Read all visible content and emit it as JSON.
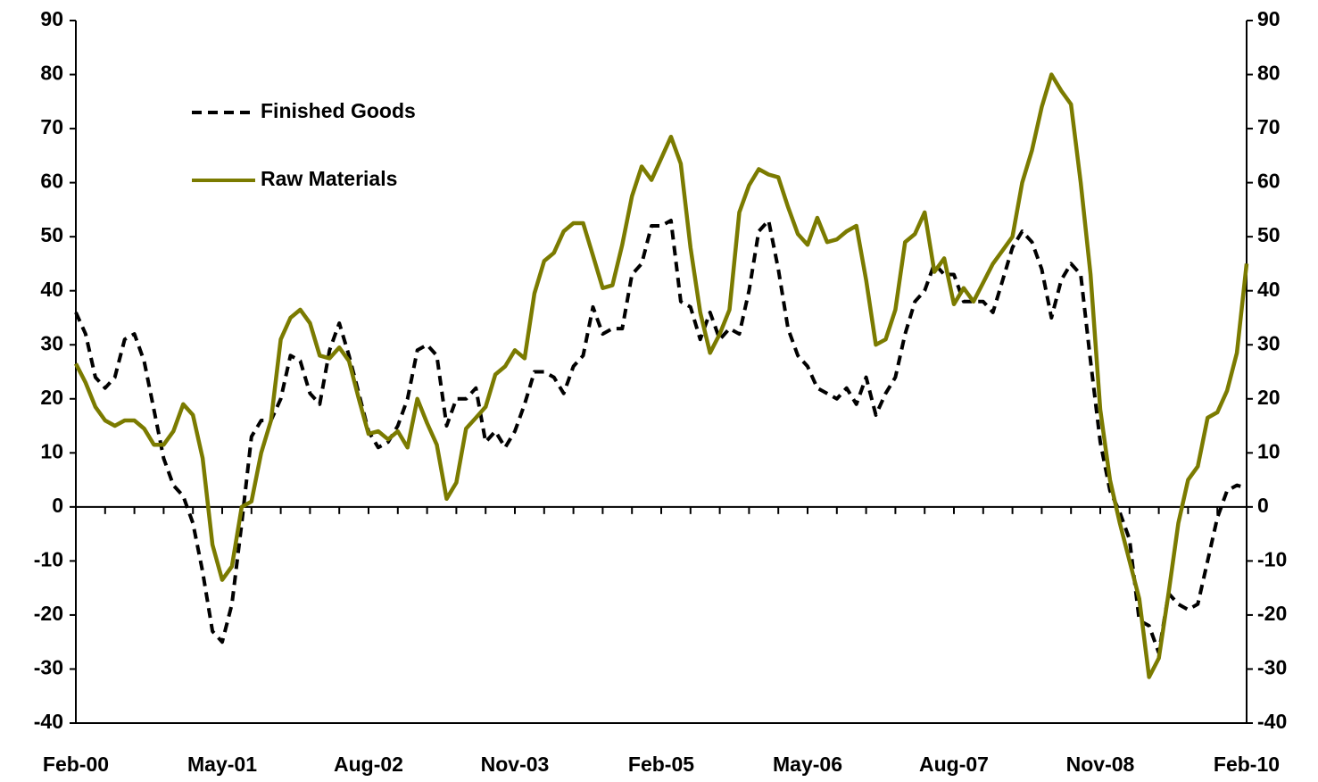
{
  "chart_data": {
    "type": "line",
    "categories": [
      "Feb-00",
      null,
      null,
      null,
      null,
      null,
      null,
      null,
      null,
      null,
      null,
      null,
      null,
      null,
      null,
      "May-01",
      null,
      null,
      null,
      null,
      null,
      null,
      null,
      null,
      null,
      null,
      null,
      null,
      null,
      null,
      "Aug-02",
      null,
      null,
      null,
      null,
      null,
      null,
      null,
      null,
      null,
      null,
      null,
      null,
      null,
      null,
      "Nov-03",
      null,
      null,
      null,
      null,
      null,
      null,
      null,
      null,
      null,
      null,
      null,
      null,
      null,
      null,
      "Feb-05",
      null,
      null,
      null,
      null,
      null,
      null,
      null,
      null,
      null,
      null,
      null,
      null,
      null,
      null,
      "May-06",
      null,
      null,
      null,
      null,
      null,
      null,
      null,
      null,
      null,
      null,
      null,
      null,
      null,
      null,
      "Aug-07",
      null,
      null,
      null,
      null,
      null,
      null,
      null,
      null,
      null,
      null,
      null,
      null,
      null,
      null,
      "Nov-08",
      null,
      null,
      null,
      null,
      null,
      null,
      null,
      null,
      null,
      null,
      null,
      null,
      null,
      null,
      "Feb-10"
    ],
    "series": [
      {
        "name": "Finished Goods",
        "color": "#000000",
        "dashed": true,
        "values": [
          36,
          32,
          24,
          22,
          24,
          31,
          32,
          27,
          18,
          9,
          4,
          2,
          -3,
          -12,
          -23,
          -25,
          -18,
          -3,
          13,
          16,
          16,
          20,
          28,
          27,
          21,
          19,
          29,
          34,
          28,
          21,
          14,
          11,
          12,
          15,
          20,
          29,
          30,
          28,
          15,
          20,
          20,
          22,
          12,
          14,
          11,
          14,
          19,
          25,
          25,
          24,
          21,
          26,
          28,
          37,
          32,
          33,
          33,
          43,
          45,
          52,
          52,
          53,
          38,
          37,
          31,
          36,
          31,
          33,
          32,
          40,
          51,
          53,
          44,
          33,
          28,
          26,
          22,
          21,
          20,
          22,
          19,
          24,
          17,
          21,
          24,
          32,
          38,
          40,
          45,
          43,
          43,
          38,
          38,
          38,
          36,
          42,
          48,
          51,
          49,
          44,
          35,
          42,
          45,
          43,
          27,
          12,
          3,
          -1,
          -6,
          -21,
          -22,
          -27,
          -16,
          -18,
          -19,
          -18,
          -10,
          -2,
          3,
          4,
          3.5
        ]
      },
      {
        "name": "Raw Materials",
        "color": "#7b7b00",
        "dashed": false,
        "values": [
          26.5,
          23,
          18.5,
          16,
          15,
          16,
          16,
          14.5,
          11.5,
          11.5,
          14,
          19,
          17,
          9,
          -7,
          -13.5,
          -11,
          0,
          1,
          10,
          16,
          31,
          35,
          36.5,
          34,
          28,
          27.5,
          29.5,
          27,
          20,
          13.5,
          14,
          12.5,
          14,
          11,
          20,
          15.5,
          11.5,
          1.5,
          4.5,
          14.5,
          16.5,
          18.5,
          24.5,
          26,
          29,
          27.5,
          39.5,
          45.5,
          47,
          51,
          52.5,
          52.5,
          46.5,
          40.5,
          41,
          48.5,
          57.5,
          63,
          60.5,
          64.5,
          68.5,
          63.5,
          48,
          36,
          28.5,
          32,
          36.5,
          54.5,
          59.5,
          62.5,
          61.5,
          61,
          55.5,
          50.5,
          48.5,
          53.5,
          49,
          49.5,
          51,
          52,
          42,
          30,
          31,
          36.5,
          49,
          50.5,
          54.5,
          43.5,
          46,
          37.5,
          40.5,
          38,
          41.5,
          45,
          47.5,
          50,
          60,
          66,
          74,
          80,
          77,
          74.5,
          60,
          43,
          18,
          5,
          -3,
          -10,
          -17,
          -31.5,
          -28,
          -16,
          -3,
          5,
          7.5,
          16.5,
          17.5,
          21.5,
          28.5,
          45
        ]
      }
    ],
    "ylim": [
      -40,
      90
    ],
    "yticks": [
      -40,
      -30,
      -20,
      -10,
      0,
      10,
      20,
      30,
      40,
      50,
      60,
      70,
      80,
      90
    ],
    "y2lim": [
      -40,
      90
    ],
    "y2ticks": [
      -40,
      -30,
      -20,
      -10,
      0,
      10,
      20,
      30,
      40,
      50,
      60,
      70,
      80,
      90
    ],
    "legend": "upper left"
  }
}
